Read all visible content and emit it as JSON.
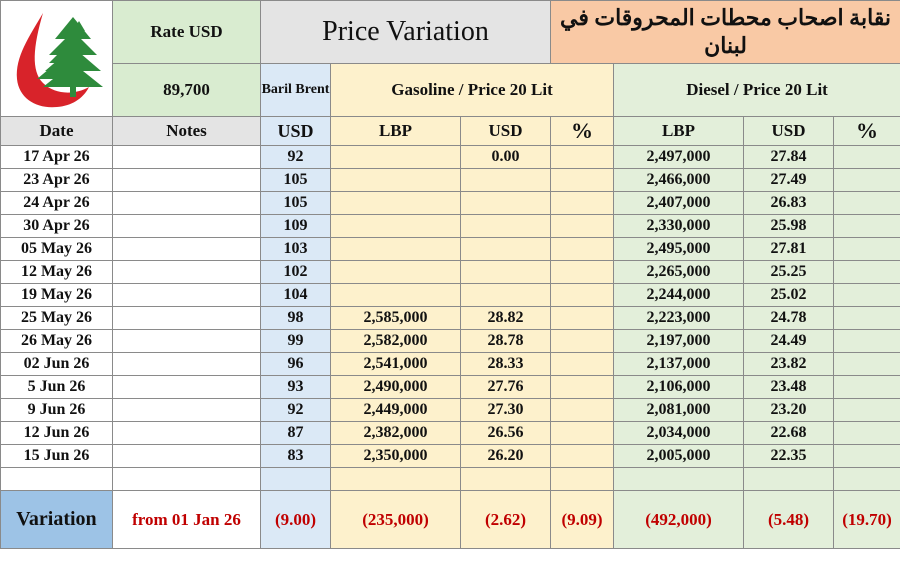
{
  "header": {
    "rate_label": "Rate USD",
    "rate_value": "89,700",
    "title": "Price Variation",
    "arabic_title": "نقابة اصحاب محطات المحروقات في لبنان",
    "baril_brent": "Baril Brent",
    "gasoline_header": "Gasoline / Price 20 Lit",
    "diesel_header": "Diesel / Price 20 Lit"
  },
  "columns": {
    "date": "Date",
    "notes": "Notes",
    "usd": "USD",
    "gas_lbp": "LBP",
    "gas_usd": "USD",
    "gas_pct": "%",
    "dsl_lbp": "LBP",
    "dsl_usd": "USD",
    "dsl_pct": "%"
  },
  "rows": [
    {
      "date": "17 Apr 26",
      "notes": "",
      "brent": "92",
      "gas_lbp": "",
      "gas_usd": "0.00",
      "gas_pct": "",
      "dsl_lbp": "2,497,000",
      "dsl_usd": "27.84",
      "dsl_pct": ""
    },
    {
      "date": "23 Apr 26",
      "notes": "",
      "brent": "105",
      "gas_lbp": "",
      "gas_usd": "",
      "gas_pct": "",
      "dsl_lbp": "2,466,000",
      "dsl_usd": "27.49",
      "dsl_pct": ""
    },
    {
      "date": "24 Apr 26",
      "notes": "",
      "brent": "105",
      "gas_lbp": "",
      "gas_usd": "",
      "gas_pct": "",
      "dsl_lbp": "2,407,000",
      "dsl_usd": "26.83",
      "dsl_pct": ""
    },
    {
      "date": "30 Apr 26",
      "notes": "",
      "brent": "109",
      "gas_lbp": "",
      "gas_usd": "",
      "gas_pct": "",
      "dsl_lbp": "2,330,000",
      "dsl_usd": "25.98",
      "dsl_pct": ""
    },
    {
      "date": "05 May 26",
      "notes": "",
      "brent": "103",
      "gas_lbp": "",
      "gas_usd": "",
      "gas_pct": "",
      "dsl_lbp": "2,495,000",
      "dsl_usd": "27.81",
      "dsl_pct": ""
    },
    {
      "date": "12 May 26",
      "notes": "",
      "brent": "102",
      "gas_lbp": "",
      "gas_usd": "",
      "gas_pct": "",
      "dsl_lbp": "2,265,000",
      "dsl_usd": "25.25",
      "dsl_pct": ""
    },
    {
      "date": "19 May 26",
      "notes": "",
      "brent": "104",
      "gas_lbp": "",
      "gas_usd": "",
      "gas_pct": "",
      "dsl_lbp": "2,244,000",
      "dsl_usd": "25.02",
      "dsl_pct": ""
    },
    {
      "date": "25 May 26",
      "notes": "",
      "brent": "98",
      "gas_lbp": "2,585,000",
      "gas_usd": "28.82",
      "gas_pct": "",
      "dsl_lbp": "2,223,000",
      "dsl_usd": "24.78",
      "dsl_pct": ""
    },
    {
      "date": "26 May 26",
      "notes": "",
      "brent": "99",
      "gas_lbp": "2,582,000",
      "gas_usd": "28.78",
      "gas_pct": "",
      "dsl_lbp": "2,197,000",
      "dsl_usd": "24.49",
      "dsl_pct": ""
    },
    {
      "date": "02 Jun 26",
      "notes": "",
      "brent": "96",
      "gas_lbp": "2,541,000",
      "gas_usd": "28.33",
      "gas_pct": "",
      "dsl_lbp": "2,137,000",
      "dsl_usd": "23.82",
      "dsl_pct": ""
    },
    {
      "date": "5 Jun 26",
      "notes": "",
      "brent": "93",
      "gas_lbp": "2,490,000",
      "gas_usd": "27.76",
      "gas_pct": "",
      "dsl_lbp": "2,106,000",
      "dsl_usd": "23.48",
      "dsl_pct": ""
    },
    {
      "date": "9 Jun 26",
      "notes": "",
      "brent": "92",
      "gas_lbp": "2,449,000",
      "gas_usd": "27.30",
      "gas_pct": "",
      "dsl_lbp": "2,081,000",
      "dsl_usd": "23.20",
      "dsl_pct": ""
    },
    {
      "date": "12 Jun 26",
      "notes": "",
      "brent": "87",
      "gas_lbp": "2,382,000",
      "gas_usd": "26.56",
      "gas_pct": "",
      "dsl_lbp": "2,034,000",
      "dsl_usd": "22.68",
      "dsl_pct": ""
    },
    {
      "date": "15 Jun 26",
      "notes": "",
      "brent": "83",
      "gas_lbp": "2,350,000",
      "gas_usd": "26.20",
      "gas_pct": "",
      "dsl_lbp": "2,005,000",
      "dsl_usd": "22.35",
      "dsl_pct": ""
    },
    {
      "date": "",
      "notes": "",
      "brent": "",
      "gas_lbp": "",
      "gas_usd": "",
      "gas_pct": "",
      "dsl_lbp": "",
      "dsl_usd": "",
      "dsl_pct": ""
    }
  ],
  "variation": {
    "label": "Variation",
    "period": "from 01 Jan 26",
    "brent": "(9.00)",
    "gas_lbp": "(235,000)",
    "gas_usd": "(2.62)",
    "gas_pct": "(9.09)",
    "dsl_lbp": "(492,000)",
    "dsl_usd": "(5.48)",
    "dsl_pct": "(19.70)"
  },
  "colors": {
    "header_green": "#d9ecd0",
    "title_gray": "#e4e4e4",
    "arabic_orange": "#f9c9a5",
    "usd_blue": "#dbe9f6",
    "gasoline_yellow": "#fdf1cc",
    "diesel_green": "#e3efda",
    "variation_blue": "#9dc3e6",
    "negative_red": "#c00000"
  },
  "icons": {
    "logo": "cedar-drop-logo-icon"
  }
}
